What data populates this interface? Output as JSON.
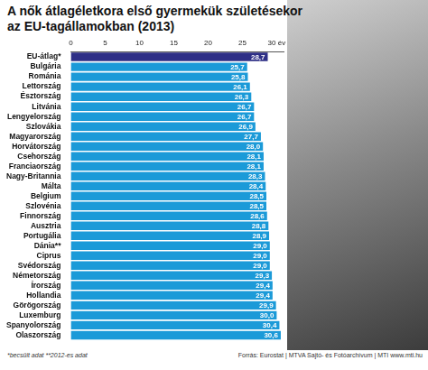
{
  "chart_data": {
    "type": "bar",
    "orientation": "horizontal",
    "title": [
      "A nők átlagéletkora első gyermekük születésekor",
      "az EU-tagállamokban (2013)"
    ],
    "categories": [
      "EU-átlag*",
      "Bulgária",
      "Románia",
      "Lettország",
      "Észtország",
      "Litvánia",
      "Lengyelország",
      "Szlovákia",
      "Magyarország",
      "Horvátország",
      "Csehország",
      "Franciaország",
      "Nagy-Britannia",
      "Málta",
      "Belgium",
      "Szlovénia",
      "Finnország",
      "Ausztria",
      "Portugália",
      "Dánia**",
      "Ciprus",
      "Svédország",
      "Németország",
      "Írország",
      "Hollandia",
      "Görögország",
      "Luxemburg",
      "Spanyolország",
      "Olaszország"
    ],
    "values": [
      28.7,
      25.7,
      25.8,
      26.1,
      26.3,
      26.7,
      26.7,
      26.9,
      27.7,
      28.0,
      28.1,
      28.1,
      28.3,
      28.4,
      28.5,
      28.5,
      28.6,
      28.8,
      28.9,
      29.0,
      29.0,
      29.0,
      29.3,
      29.4,
      29.4,
      29.9,
      30.0,
      30.4,
      30.6
    ],
    "value_labels": [
      "28,7",
      "25,7",
      "25,8",
      "26,1",
      "26,3",
      "26,7",
      "26,7",
      "26,9",
      "27,7",
      "28,0",
      "28,1",
      "28,1",
      "28,3",
      "28,4",
      "28,5",
      "28,5",
      "28,6",
      "28,8",
      "28,9",
      "29,0",
      "29,0",
      "29,0",
      "29,3",
      "29,4",
      "29,4",
      "29,9",
      "30,0",
      "30,4",
      "30,6"
    ],
    "colors": [
      "#2e2f86",
      "#1b9ad8",
      "#1b9ad8",
      "#1b9ad8",
      "#1b9ad8",
      "#1b9ad8",
      "#1b9ad8",
      "#1b9ad8",
      "#1b9ad8",
      "#1b9ad8",
      "#1b9ad8",
      "#1b9ad8",
      "#1b9ad8",
      "#1b9ad8",
      "#1b9ad8",
      "#1b9ad8",
      "#1b9ad8",
      "#1b9ad8",
      "#1b9ad8",
      "#1b9ad8",
      "#1b9ad8",
      "#1b9ad8",
      "#1b9ad8",
      "#1b9ad8",
      "#1b9ad8",
      "#1b9ad8",
      "#1b9ad8",
      "#1b9ad8",
      "#1b9ad8"
    ],
    "xlim": [
      0,
      31
    ],
    "xticks": [
      0,
      5,
      10,
      15,
      20,
      25,
      {
        "value": 30,
        "label": "30 év"
      }
    ],
    "grid": false,
    "data_labels": true,
    "notes": [
      "*becsült adat",
      "**2012-es adat"
    ],
    "source": [
      "Forrás: Eurostat | MTVA Sajtó- és Fotóarchívum | MTI",
      "www.mti.hu"
    ]
  }
}
